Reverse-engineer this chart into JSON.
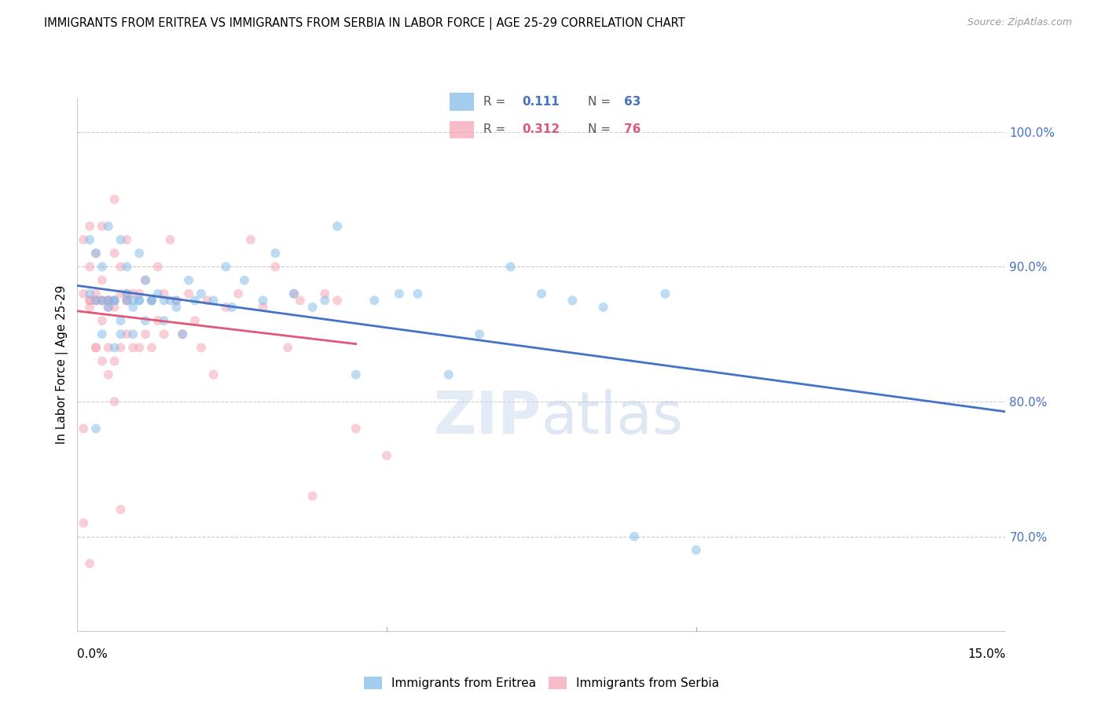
{
  "title": "IMMIGRANTS FROM ERITREA VS IMMIGRANTS FROM SERBIA IN LABOR FORCE | AGE 25-29 CORRELATION CHART",
  "source": "Source: ZipAtlas.com",
  "ylabel": "In Labor Force | Age 25-29",
  "x_range": [
    0.0,
    0.15
  ],
  "y_range": [
    0.63,
    1.025
  ],
  "y_ticks": [
    0.7,
    0.8,
    0.9,
    1.0
  ],
  "y_tick_labels": [
    "70.0%",
    "80.0%",
    "90.0%",
    "100.0%"
  ],
  "R_eritrea": 0.111,
  "N_eritrea": 63,
  "R_serbia": 0.312,
  "N_serbia": 76,
  "color_eritrea": "#7db8e8",
  "color_serbia": "#f4a0b0",
  "line_color_eritrea": "#4472c4",
  "line_color_serbia": "#e05878",
  "scatter_alpha": 0.5,
  "marker_size": 75,
  "eritrea_x": [
    0.002,
    0.002,
    0.003,
    0.003,
    0.004,
    0.004,
    0.005,
    0.005,
    0.006,
    0.006,
    0.007,
    0.007,
    0.008,
    0.008,
    0.009,
    0.009,
    0.01,
    0.01,
    0.011,
    0.011,
    0.012,
    0.013,
    0.014,
    0.015,
    0.016,
    0.017,
    0.018,
    0.019,
    0.02,
    0.022,
    0.024,
    0.025,
    0.027,
    0.03,
    0.032,
    0.035,
    0.038,
    0.04,
    0.042,
    0.045,
    0.048,
    0.052,
    0.055,
    0.06,
    0.065,
    0.07,
    0.075,
    0.08,
    0.085,
    0.09,
    0.095,
    0.1,
    0.005,
    0.006,
    0.007,
    0.008,
    0.009,
    0.01,
    0.012,
    0.014,
    0.016,
    0.003,
    0.004
  ],
  "eritrea_y": [
    0.88,
    0.92,
    0.875,
    0.91,
    0.85,
    0.9,
    0.87,
    0.93,
    0.84,
    0.875,
    0.86,
    0.92,
    0.88,
    0.9,
    0.85,
    0.87,
    0.875,
    0.91,
    0.86,
    0.89,
    0.875,
    0.88,
    0.86,
    0.875,
    0.87,
    0.85,
    0.89,
    0.875,
    0.88,
    0.875,
    0.9,
    0.87,
    0.89,
    0.875,
    0.91,
    0.88,
    0.87,
    0.875,
    0.93,
    0.82,
    0.875,
    0.88,
    0.88,
    0.82,
    0.85,
    0.9,
    0.88,
    0.875,
    0.87,
    0.7,
    0.88,
    0.69,
    0.875,
    0.875,
    0.85,
    0.875,
    0.875,
    0.875,
    0.875,
    0.875,
    0.875,
    0.78,
    0.875
  ],
  "serbia_x": [
    0.001,
    0.001,
    0.002,
    0.002,
    0.002,
    0.003,
    0.003,
    0.003,
    0.004,
    0.004,
    0.004,
    0.005,
    0.005,
    0.005,
    0.006,
    0.006,
    0.006,
    0.006,
    0.007,
    0.007,
    0.007,
    0.008,
    0.008,
    0.008,
    0.009,
    0.009,
    0.01,
    0.01,
    0.011,
    0.011,
    0.012,
    0.012,
    0.013,
    0.013,
    0.014,
    0.014,
    0.015,
    0.016,
    0.017,
    0.018,
    0.019,
    0.02,
    0.021,
    0.022,
    0.024,
    0.026,
    0.028,
    0.03,
    0.032,
    0.034,
    0.036,
    0.04,
    0.045,
    0.05,
    0.002,
    0.003,
    0.003,
    0.004,
    0.004,
    0.005,
    0.005,
    0.006,
    0.001,
    0.001,
    0.002,
    0.002,
    0.003,
    0.004,
    0.005,
    0.006,
    0.007,
    0.008,
    0.008,
    0.035,
    0.038,
    0.042
  ],
  "serbia_y": [
    0.88,
    0.92,
    0.87,
    0.9,
    0.93,
    0.84,
    0.88,
    0.91,
    0.86,
    0.89,
    0.93,
    0.84,
    0.87,
    0.875,
    0.83,
    0.87,
    0.91,
    0.95,
    0.84,
    0.88,
    0.9,
    0.85,
    0.88,
    0.92,
    0.84,
    0.88,
    0.84,
    0.88,
    0.85,
    0.89,
    0.84,
    0.875,
    0.86,
    0.9,
    0.85,
    0.88,
    0.92,
    0.875,
    0.85,
    0.88,
    0.86,
    0.84,
    0.875,
    0.82,
    0.87,
    0.88,
    0.92,
    0.87,
    0.9,
    0.84,
    0.875,
    0.88,
    0.78,
    0.76,
    0.875,
    0.84,
    0.875,
    0.83,
    0.875,
    0.82,
    0.875,
    0.8,
    0.71,
    0.78,
    0.68,
    0.875,
    0.875,
    0.875,
    0.875,
    0.875,
    0.72,
    0.875,
    0.875,
    0.88,
    0.73,
    0.875
  ]
}
